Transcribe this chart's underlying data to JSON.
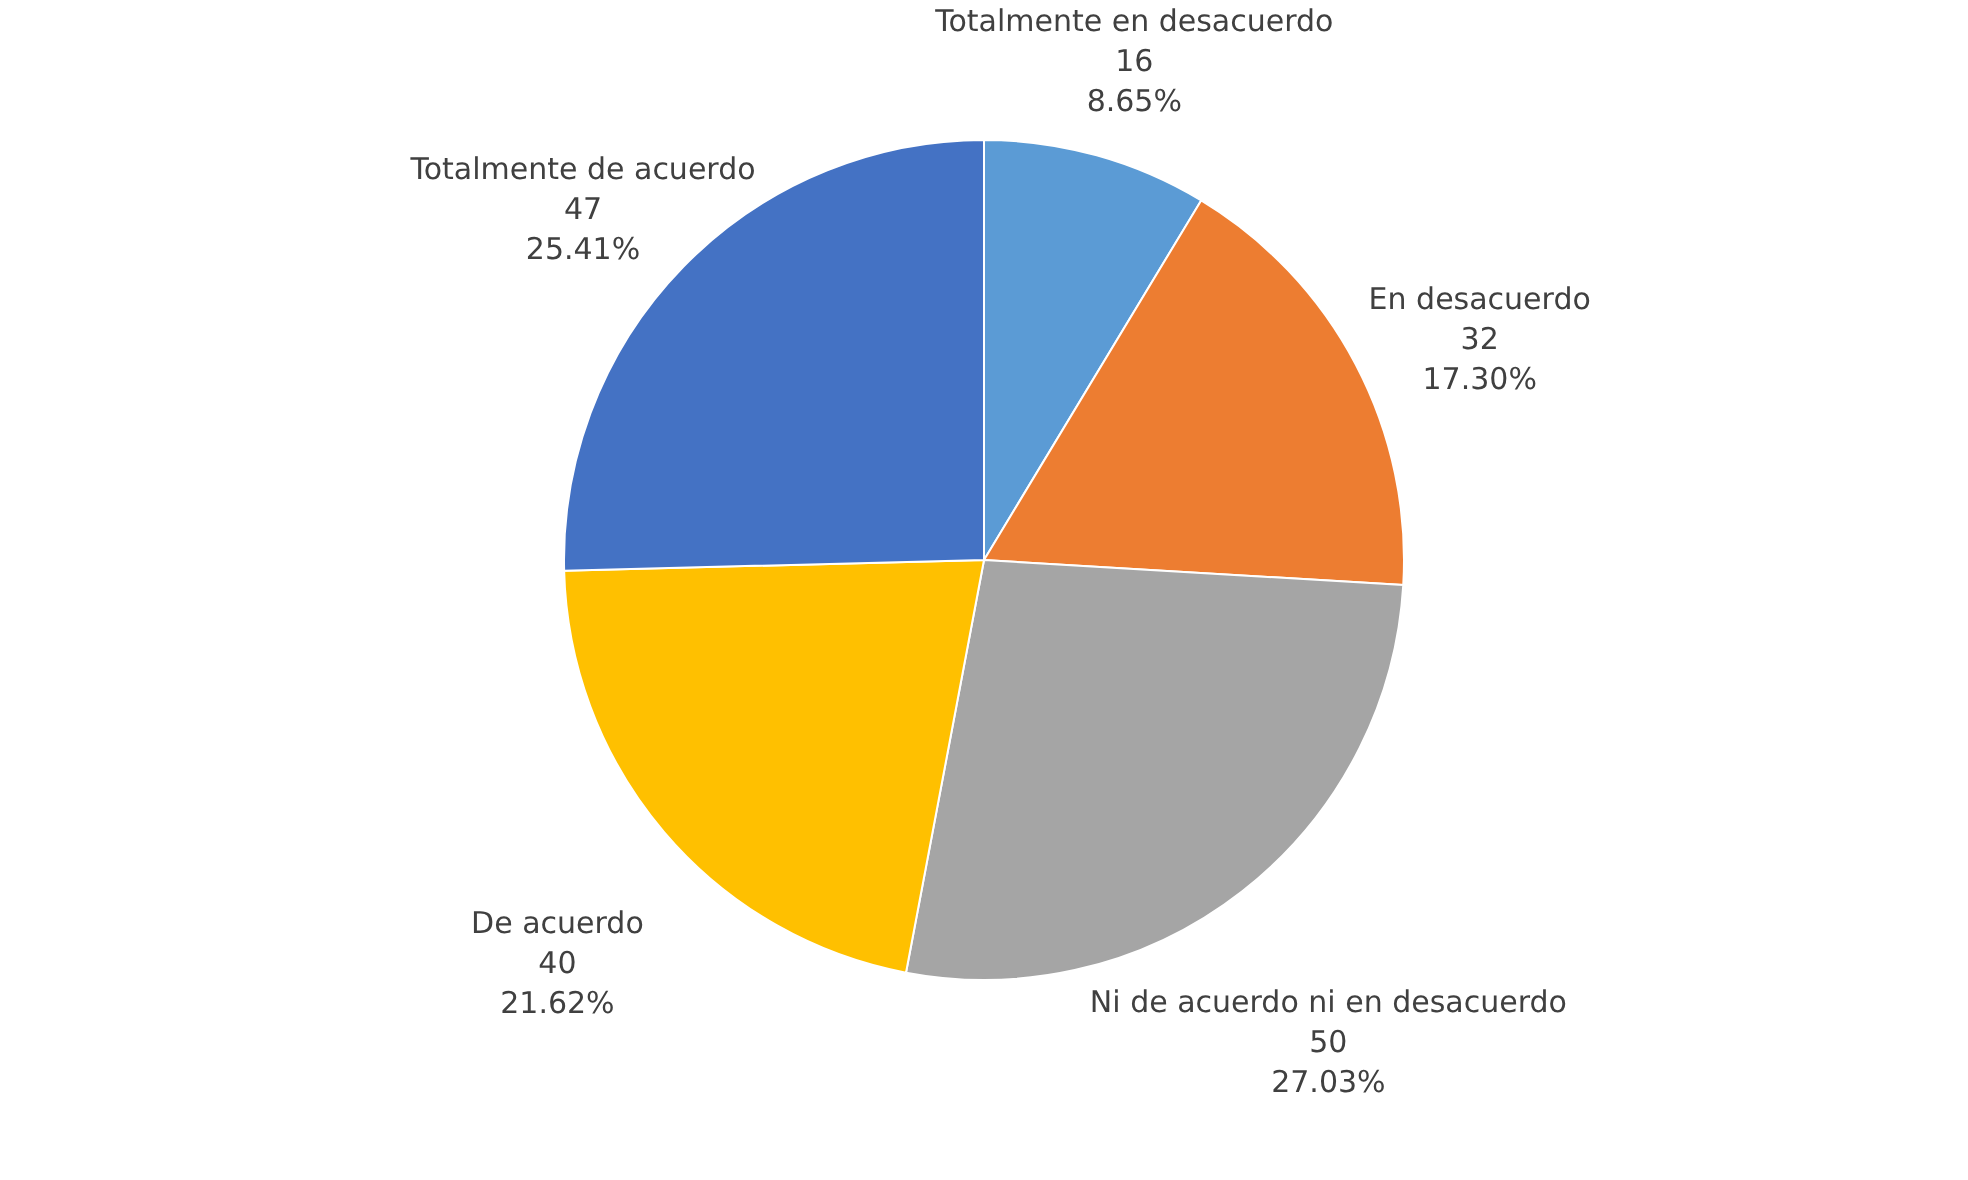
{
  "chart_data": {
    "type": "pie",
    "categories": [
      "Totalmente en desacuerdo",
      "En desacuerdo",
      "Ni de acuerdo ni en desacuerdo",
      "De acuerdo",
      "Totalmente de acuerdo"
    ],
    "values": [
      16,
      32,
      50,
      40,
      47
    ],
    "colors": [
      "#5b9bd5",
      "#ed7d31",
      "#a5a5a5",
      "#ffc000",
      "#4472c4"
    ],
    "value_labels": [
      "16\n8.65%",
      "32\n17.30%",
      "50\n27.03%",
      "40\n21.62%",
      "47\n25.41%"
    ]
  }
}
